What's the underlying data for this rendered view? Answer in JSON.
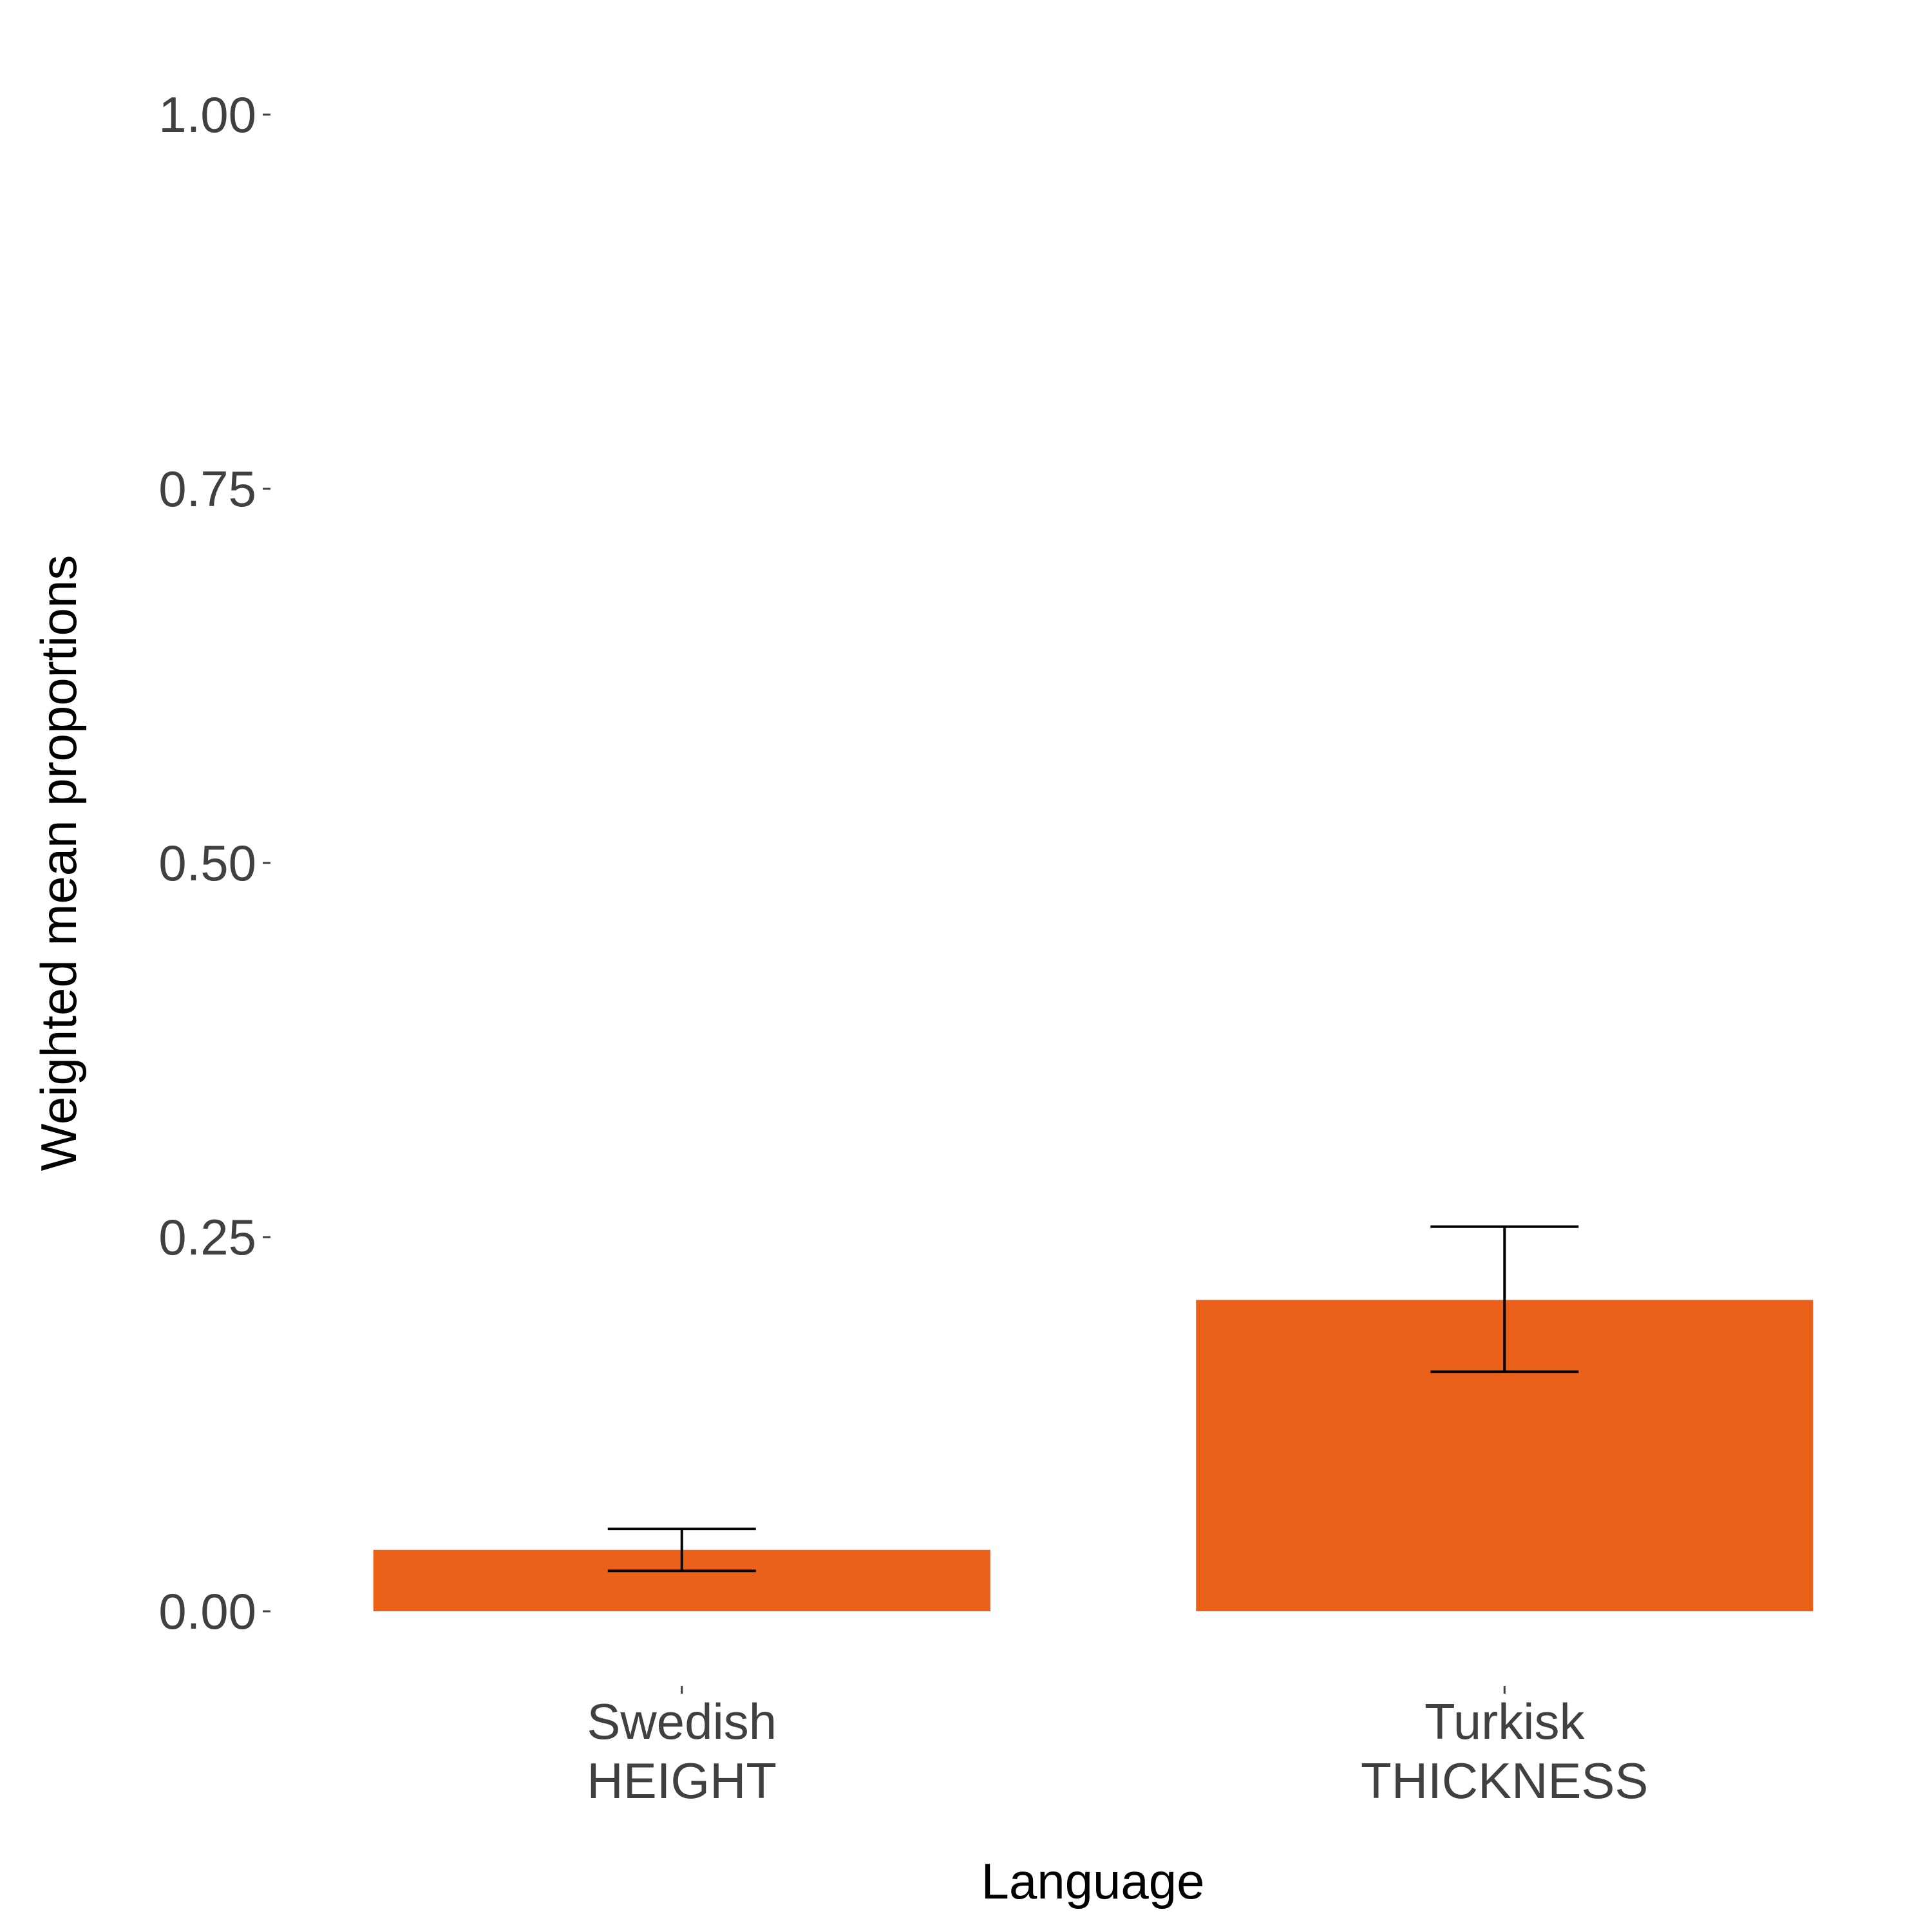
{
  "chart_data": {
    "type": "bar",
    "categories": [
      [
        "Swedish",
        "HEIGHT"
      ],
      [
        "Turkisk",
        "THICKNESS"
      ]
    ],
    "values": [
      0.041,
      0.208
    ],
    "error_bars": [
      {
        "low": 0.027,
        "high": 0.055
      },
      {
        "low": 0.16,
        "high": 0.257
      }
    ],
    "bar_color": "#EB6119",
    "xlabel": "Language",
    "ylabel": "Weighted mean proportions",
    "ylim": [
      0,
      1
    ],
    "yticks": [
      "0.00",
      "0.25",
      "0.50",
      "0.75",
      "1.00"
    ],
    "ytick_values": [
      0,
      0.25,
      0.5,
      0.75,
      1.0
    ],
    "grid": false,
    "legend": "none"
  }
}
